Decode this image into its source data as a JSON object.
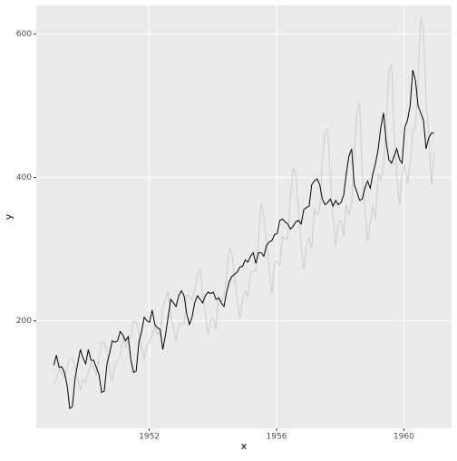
{
  "chart_data": {
    "type": "line",
    "x_label": "x",
    "y_label": "y",
    "xlim": [
      1948.45,
      1961.5
    ],
    "xticks": [
      1952,
      1956,
      1960
    ],
    "ylim": [
      50,
      640
    ],
    "yticks": [
      200,
      400,
      600
    ],
    "grid": true,
    "series": [
      {
        "color": "#cccccc",
        "values": [
          112,
          118,
          132,
          129,
          121,
          135,
          148,
          148,
          136,
          119,
          104,
          118,
          115,
          126,
          141,
          135,
          125,
          149,
          170,
          170,
          158,
          133,
          114,
          140,
          145,
          150,
          178,
          163,
          172,
          178,
          199,
          199,
          184,
          162,
          146,
          166,
          171,
          180,
          193,
          181,
          183,
          218,
          230,
          242,
          209,
          191,
          172,
          194,
          196,
          196,
          236,
          235,
          229,
          243,
          264,
          272,
          237,
          211,
          180,
          201,
          204,
          188,
          235,
          227,
          234,
          264,
          302,
          293,
          259,
          229,
          203,
          229,
          242,
          233,
          267,
          269,
          270,
          315,
          364,
          347,
          312,
          274,
          237,
          278,
          284,
          277,
          317,
          313,
          318,
          374,
          413,
          405,
          355,
          306,
          271,
          306,
          315,
          301,
          356,
          348,
          355,
          422,
          465,
          467,
          404,
          347,
          305,
          336,
          340,
          318,
          362,
          348,
          363,
          435,
          491,
          505,
          404,
          359,
          310,
          337,
          360,
          342,
          406,
          396,
          420,
          472,
          548,
          559,
          463,
          407,
          362,
          405,
          417,
          391,
          419,
          461,
          472,
          535,
          622,
          606,
          508,
          461,
          390,
          432
        ]
      },
      {
        "color": "#000000",
        "values": [
          138,
          152,
          135,
          136,
          128,
          110,
          78,
          80,
          120,
          140,
          160,
          148,
          140,
          160,
          145,
          145,
          135,
          125,
          100,
          102,
          140,
          155,
          172,
          170,
          172,
          185,
          180,
          172,
          178,
          145,
          128,
          130,
          170,
          185,
          205,
          200,
          198,
          215,
          195,
          190,
          188,
          160,
          180,
          205,
          230,
          225,
          220,
          235,
          242,
          235,
          210,
          195,
          205,
          225,
          235,
          230,
          225,
          235,
          240,
          238,
          240,
          230,
          232,
          225,
          220,
          240,
          255,
          262,
          265,
          268,
          275,
          276,
          285,
          282,
          290,
          295,
          280,
          295,
          295,
          290,
          305,
          310,
          312,
          320,
          322,
          340,
          342,
          338,
          335,
          328,
          332,
          338,
          340,
          335,
          355,
          358,
          360,
          390,
          395,
          398,
          390,
          370,
          362,
          365,
          370,
          360,
          368,
          362,
          365,
          375,
          405,
          430,
          440,
          390,
          380,
          368,
          370,
          385,
          395,
          385,
          405,
          420,
          440,
          470,
          490,
          450,
          425,
          420,
          430,
          440,
          425,
          420,
          470,
          480,
          500,
          550,
          535,
          500,
          490,
          480,
          440,
          455,
          462,
          462
        ]
      }
    ]
  }
}
